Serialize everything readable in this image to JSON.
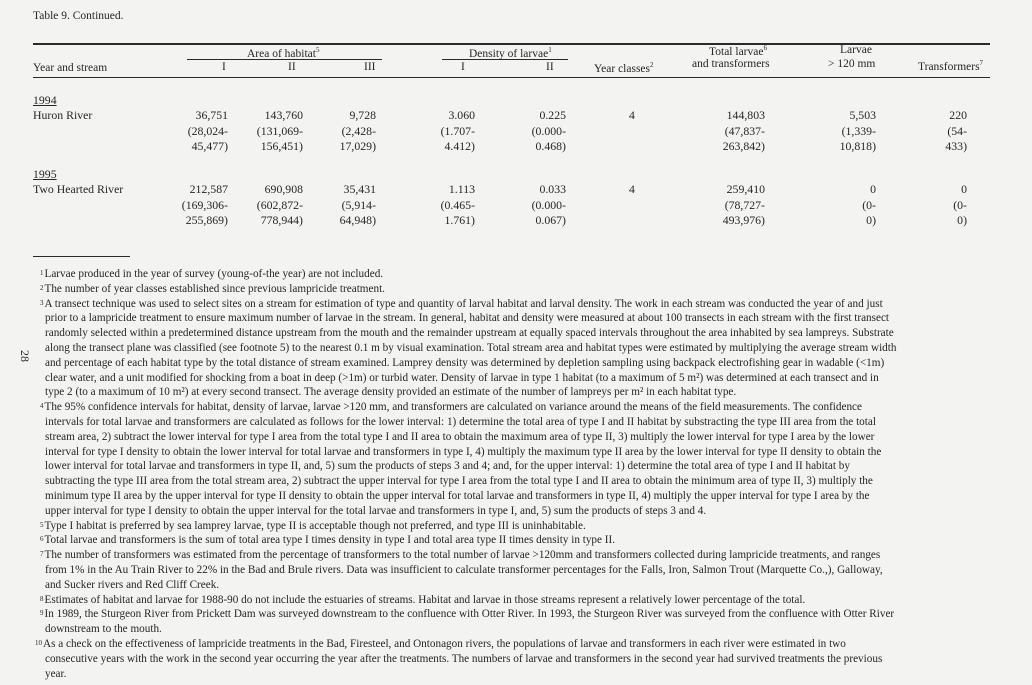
{
  "caption": "Table 9.   Continued.",
  "page_number": "28",
  "headers": {
    "year_and_stream": "Year and stream",
    "area_group": "Area of habitat",
    "area_group_note": "5",
    "area_I": "I",
    "area_II": "II",
    "area_III": "III",
    "density_group": "Density of larvae",
    "density_group_note": "1",
    "density_I": "I",
    "density_II": "II",
    "year_classes": "Year classes",
    "year_classes_note": "2",
    "total_line1": "Total larvae",
    "total_note": "6",
    "total_line2": "and transformers",
    "larvae120_line1": "Larvae",
    "larvae120_line2": "> 120 mm",
    "transformers": "Transformers",
    "transformers_note": "7"
  },
  "table": {
    "rows": [
      {
        "year": "1994",
        "stream": "Huron River",
        "area_I": [
          "36,751",
          "(28,024-",
          "45,477)"
        ],
        "area_II": [
          "143,760",
          "(131,069-",
          "156,451)"
        ],
        "area_III": [
          "9,728",
          "(2,428-",
          "17,029)"
        ],
        "density_I": [
          "3.060",
          "(1.707-",
          "4.412)"
        ],
        "density_II": [
          "0.225",
          "(0.000-",
          "0.468)"
        ],
        "year_classes": "4",
        "total": [
          "144,803",
          "(47,837-",
          "263,842)"
        ],
        "larvae120": [
          "5,503",
          "(1,339-",
          "10,818)"
        ],
        "transformers": [
          "220",
          "(54-",
          "433)"
        ]
      },
      {
        "year": "1995",
        "stream": "Two Hearted River",
        "area_I": [
          "212,587",
          "(169,306-",
          "255,869)"
        ],
        "area_II": [
          "690,908",
          "(602,872-",
          "778,944)"
        ],
        "area_III": [
          "35,431",
          "(5,914-",
          "64,948)"
        ],
        "density_I": [
          "1.113",
          "(0.465-",
          "1.761)"
        ],
        "density_II": [
          "0.033",
          "(0.000-",
          "0.067)"
        ],
        "year_classes": "4",
        "total": [
          "259,410",
          "(78,727-",
          "493,976)"
        ],
        "larvae120": [
          "0",
          "(0-",
          "0)"
        ],
        "transformers": [
          "0",
          "(0-",
          "0)"
        ]
      }
    ]
  },
  "footnotes": [
    {
      "mark": "1",
      "lines": [
        "Larvae produced in the year of survey (young-of-the year) are not included."
      ]
    },
    {
      "mark": "2",
      "lines": [
        "The number of year classes established since previous lampricide treatment."
      ]
    },
    {
      "mark": "3",
      "lines": [
        "A transect technique was used to select sites on a stream for estimation of type and quantity of larval habitat and larval density.  The work in each stream was conducted the year of and just",
        "prior to a lampricide treatment to ensure maximum number of larvae in the stream.  In general, habitat and density were measured at about 100 transects in each stream with the first transect",
        "randomly selected within a predetermined distance upstream from the mouth and the remainder upstream at equally spaced intervals throughout the area inhabited by sea lampreys.  Substrate",
        "along the transect plane was classified (see footnote 5) to the nearest 0.1 m by visual examination.  Total stream area and habitat types were estimated by multiplying the average stream width",
        "and percentage of each habitat type by the total distance of stream examined.  Lamprey density was determined by depletion sampling using backpack electrofishing gear in wadable (<1m)",
        "clear water, and a unit modified for shocking from a boat in deep (>1m) or turbid water.  Density of larvae in type 1 habitat (to a maximum of 5 m²) was determined at each transect and in",
        "type 2 (to a maximum of 10 m²) at every second transect.  The average density provided an estimate of the number of lampreys per m² in each habitat type."
      ]
    },
    {
      "mark": "4",
      "lines": [
        "The 95% confidence intervals for habitat, density of larvae, larvae >120 mm, and transformers are calculated on variance around the means of the field measurements.  The confidence",
        "intervals for total larvae and transformers are calculated as follows for the lower interval:  1)  determine the total area of type I and II habitat by substracting the type III area from the total",
        "stream area, 2) subtract the lower interval for type I area from the total type I and II area to obtain the maximum area of type II, 3) multiply the lower interval for type I area by the lower",
        "interval for type I density to obtain the lower interval for total larvae and transformers in type I, 4) multiply the maximum type II area by the lower interval for type II density to obtain the",
        "lower interval for total larvae and transformers in type II, and, 5) sum the products of steps 3 and 4; and, for the upper interval:  1) determine the total area of type I and II habitat by",
        "subtracting the type III area from the total stream area, 2) subtract the upper interval for type I area from the total type I and II area to obtain the minimum area of type II, 3) multiply the",
        "minimum type II area by the upper interval for type II density to obtain the upper interval for total larvae and transformers in type II, 4) multiply the upper interval for type I area by the",
        "upper interval for type I density to obtain the upper interval for the total larvae and transformers in type I, and, 5) sum the products of steps 3 and 4."
      ]
    },
    {
      "mark": "5",
      "lines": [
        "Type I habitat is preferred by sea lamprey larvae, type II is acceptable though not preferred, and type III is uninhabitable."
      ]
    },
    {
      "mark": "6",
      "lines": [
        "Total larvae and transformers is the sum of total area type I times density in type I and total area type II times density in type II."
      ]
    },
    {
      "mark": "7",
      "lines": [
        "The number of transformers was estimated from the percentage of transformers to the total number of larvae >120mm and transformers collected during lampricide treatments, and ranges",
        "from 1% in the Au Train River to 22% in the Bad and Brule rivers.  Data was insufficient to calculate transformer percentages for the Falls, Iron, Salmon Trout (Marquette Co.,), Galloway,",
        "and Sucker rivers and Red Cliff Creek."
      ]
    },
    {
      "mark": "8",
      "lines": [
        "Estimates of habitat and larvae for 1988-90 do not include the estuaries of streams.  Habitat and larvae in those streams represent a relatively lower percentage of the total."
      ]
    },
    {
      "mark": "9",
      "lines": [
        "In 1989, the Sturgeon River from Prickett Dam was surveyed downstream to the confluence with Otter River.  In 1993, the Sturgeon River was surveyed from the confluence with Otter River",
        "downstream to the mouth."
      ]
    },
    {
      "mark": "10",
      "lines": [
        "As a check on the effectiveness of lampricide treatments in the Bad, Firesteel, and Ontonagon rivers, the populations of larvae and transformers in each river were estimated in two",
        "consecutive years with the work in the second year occurring the year after the treatments.  The numbers of larvae and transformers in the second year had survived treatments the previous",
        "year."
      ]
    }
  ]
}
